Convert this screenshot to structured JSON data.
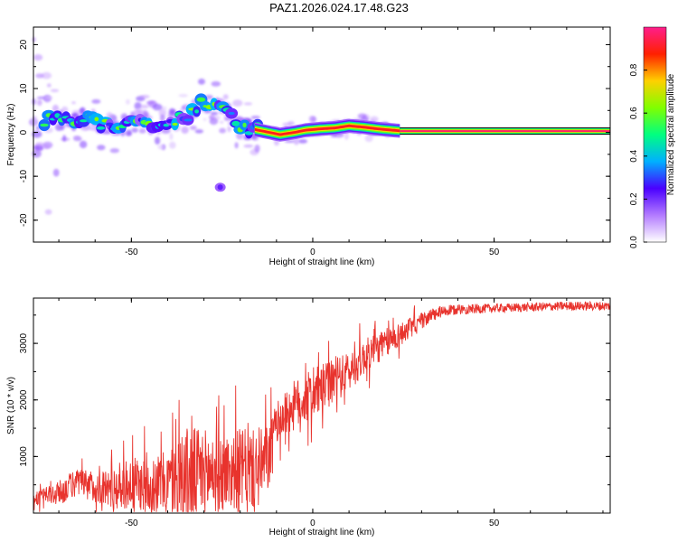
{
  "title": "PAZ1.2026.024.17.48.G23",
  "chart_data": [
    {
      "type": "heatmap",
      "name": "spectrogram",
      "xlabel": "Height of straight line (km)",
      "ylabel": "Frequency (Hz)",
      "xlim": [
        -77,
        82
      ],
      "ylim": [
        -25,
        24
      ],
      "x_ticks": [
        -50,
        0,
        50
      ],
      "y_ticks": [
        -20,
        -10,
        0,
        10,
        20
      ],
      "frequency_track": {
        "x": [
          -77,
          -72,
          -66,
          -60,
          -55,
          -50,
          -45,
          -40,
          -35,
          -30,
          -27,
          -24,
          -21,
          -18,
          -15,
          -12,
          -9,
          -5,
          -2,
          2,
          6,
          10,
          14,
          18,
          22,
          25,
          82
        ],
        "y": [
          3,
          2.8,
          3.2,
          2.5,
          1.5,
          2,
          2.5,
          2,
          4,
          6.5,
          5.5,
          4,
          2,
          1,
          0.5,
          0,
          -0.5,
          0,
          0.5,
          0.8,
          1,
          1.5,
          1.2,
          0.8,
          0.5,
          0.3,
          0.3
        ]
      },
      "outliers": [
        {
          "x": -25.5,
          "y": -12.5
        }
      ],
      "colorbar": {
        "label": "Normalized spectral amplitude",
        "range": [
          0,
          1
        ],
        "ticks": [
          0.0,
          0.2,
          0.4,
          0.6,
          0.8
        ],
        "tick_labels": [
          "0.0",
          "0.2",
          "0.4",
          "0.6",
          "0.8"
        ],
        "colors": [
          "#ffffff",
          "#b37bff",
          "#4a00ff",
          "#00b0ff",
          "#00ff80",
          "#80ff00",
          "#ffd000",
          "#ff2000",
          "#ff1e8c"
        ]
      }
    },
    {
      "type": "line",
      "name": "snr",
      "xlabel": "Height of straight line (km)",
      "ylabel": "SNR (10 * v/v)",
      "xlim": [
        -77,
        82
      ],
      "ylim": [
        0,
        3800
      ],
      "x_ticks": [
        -50,
        0,
        50
      ],
      "y_ticks": [
        1000,
        2000,
        3000
      ],
      "color": "#e8332d",
      "envelope": {
        "x": [
          -77,
          -70,
          -65,
          -60,
          -55,
          -50,
          -45,
          -40,
          -35,
          -30,
          -25,
          -20,
          -15,
          -12,
          -10,
          -5,
          0,
          5,
          10,
          15,
          20,
          25,
          30,
          35,
          40,
          50,
          60,
          70,
          82
        ],
        "mean": [
          250,
          350,
          550,
          450,
          450,
          520,
          500,
          550,
          650,
          700,
          700,
          800,
          750,
          1000,
          1600,
          1900,
          2100,
          2300,
          2500,
          2800,
          3000,
          3200,
          3400,
          3550,
          3600,
          3620,
          3640,
          3660,
          3660
        ],
        "spread": [
          100,
          220,
          250,
          260,
          400,
          450,
          500,
          550,
          900,
          800,
          700,
          700,
          700,
          600,
          350,
          450,
          450,
          400,
          350,
          300,
          260,
          200,
          150,
          110,
          90,
          80,
          80,
          80,
          80
        ]
      }
    }
  ]
}
